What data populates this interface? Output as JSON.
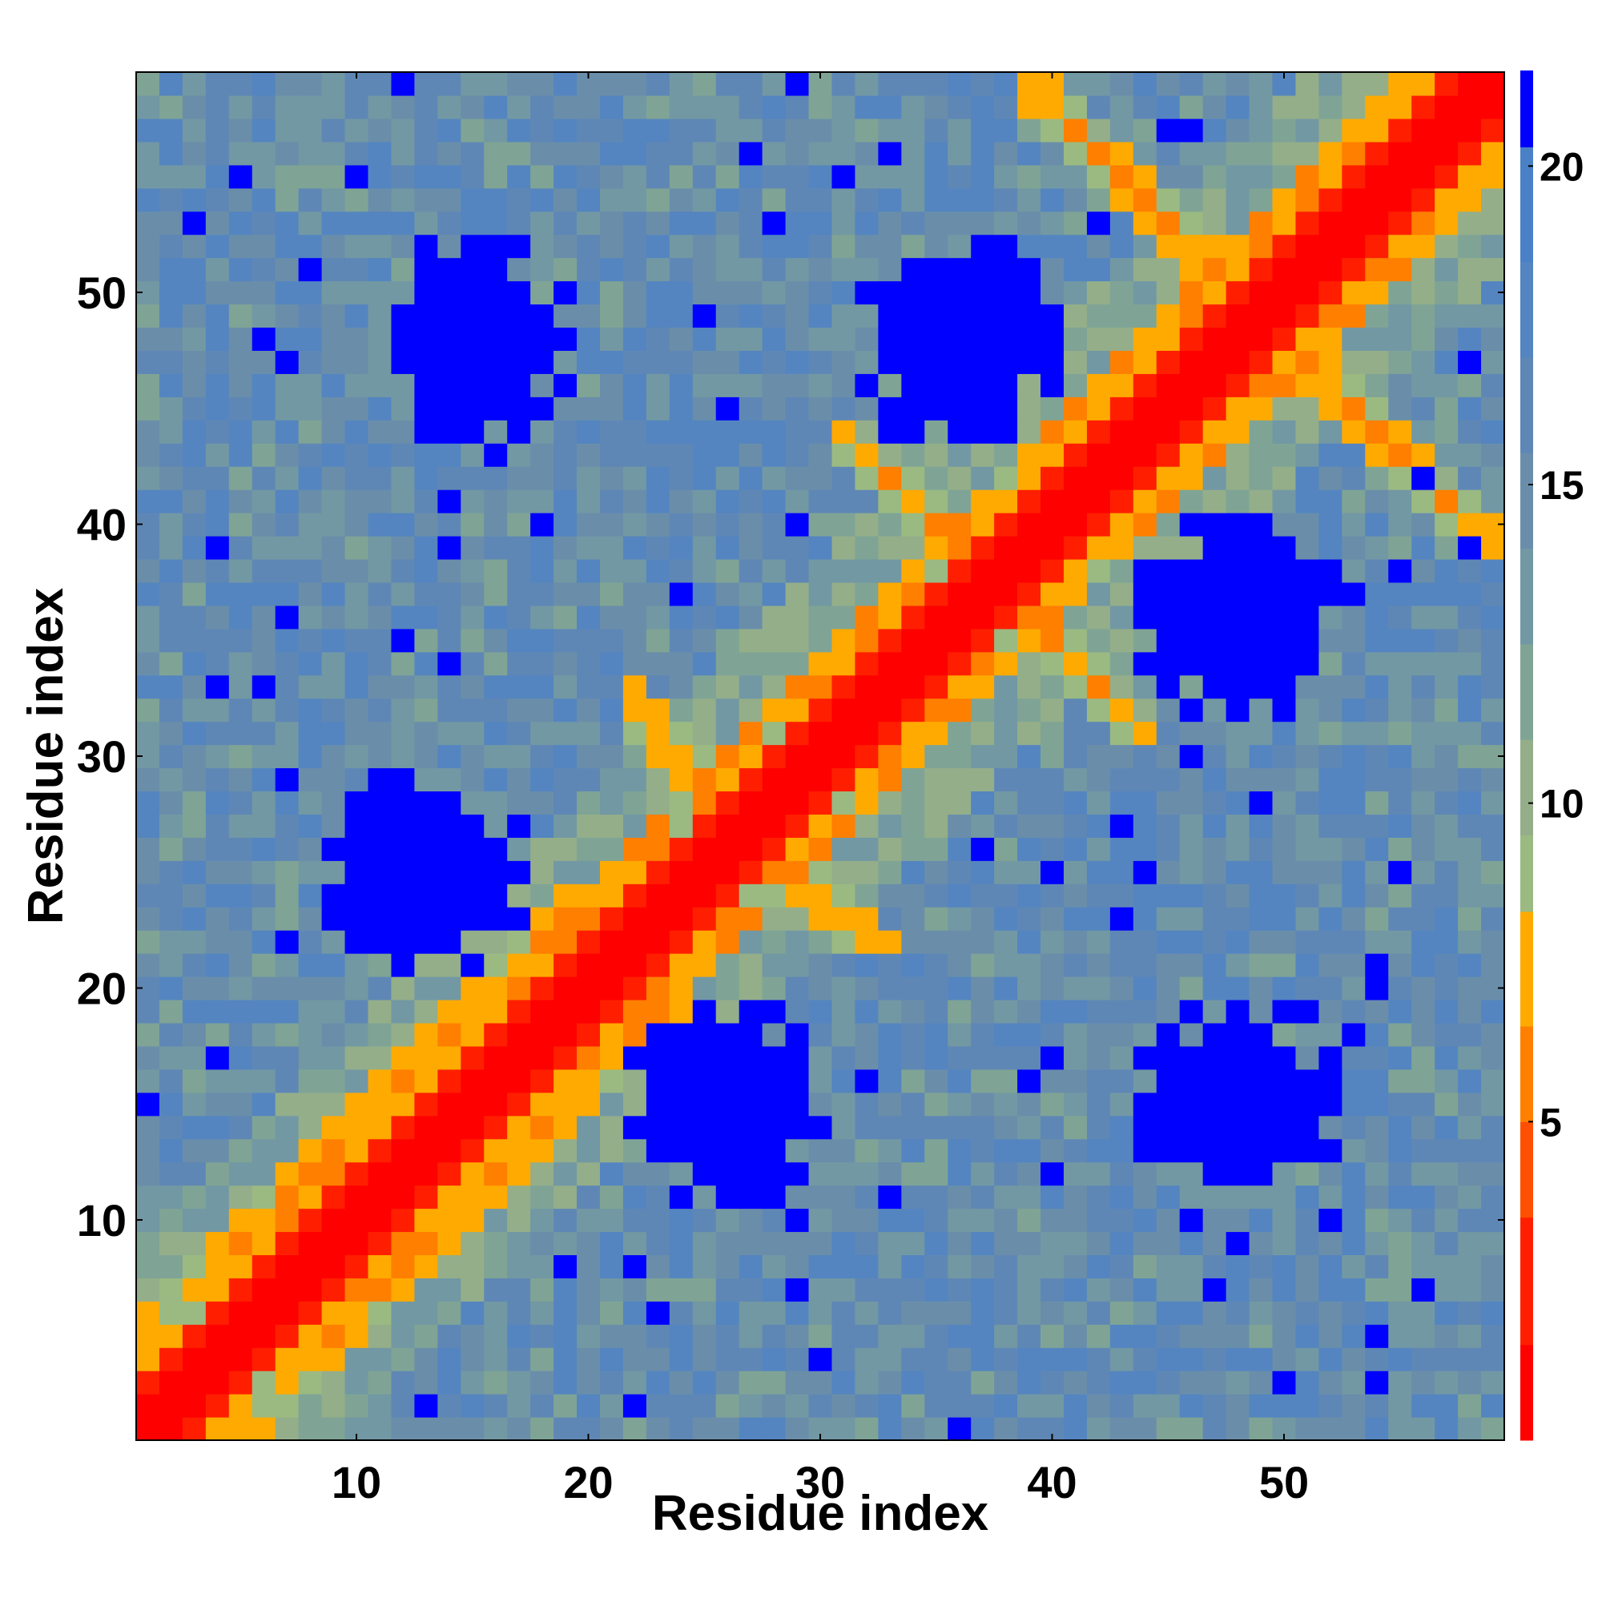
{
  "chart_data": {
    "type": "heatmap",
    "title": "",
    "xlabel": "Residue index",
    "ylabel": "Residue index",
    "n_residues": 59,
    "x_ticks": [
      10,
      20,
      30,
      40,
      50
    ],
    "y_ticks": [
      10,
      20,
      30,
      40,
      50
    ],
    "colorbar": {
      "ticks": [
        5,
        10,
        15,
        20
      ],
      "range": [
        0,
        21.5
      ],
      "bands": [
        {
          "from": 0,
          "to": 1.5,
          "color": "#ff0000"
        },
        {
          "from": 1.5,
          "to": 3.5,
          "color": "#ff1f00"
        },
        {
          "from": 3.5,
          "to": 5.0,
          "color": "#ff4f00"
        },
        {
          "from": 5.0,
          "to": 6.5,
          "color": "#ff7f00"
        },
        {
          "from": 6.5,
          "to": 8.3,
          "color": "#ffaa00"
        },
        {
          "from": 8.3,
          "to": 9.5,
          "color": "#9aba82"
        },
        {
          "from": 9.5,
          "to": 11,
          "color": "#94ae8a"
        },
        {
          "from": 11,
          "to": 12.5,
          "color": "#7fa495"
        },
        {
          "from": 12.5,
          "to": 14,
          "color": "#7298a4"
        },
        {
          "from": 14,
          "to": 15.5,
          "color": "#6a8eaa"
        },
        {
          "from": 15.5,
          "to": 17,
          "color": "#5f87b5"
        },
        {
          "from": 17,
          "to": 18.5,
          "color": "#5485c0"
        },
        {
          "from": 18.5,
          "to": 20.3,
          "color": "#4a80c6"
        },
        {
          "from": 20.3,
          "to": 21.5,
          "color": "#0000ff"
        }
      ]
    },
    "value_scale": "distance between residues (colorbar units)",
    "diagonal_value": 0,
    "contact_clusters": [
      {
        "residues_i": [
          1,
          59
        ],
        "residues_j": [
          1,
          59
        ],
        "pattern": "main diagonal",
        "max_value": 3
      },
      {
        "residues_i": [
          8,
          19
        ],
        "residues_j": [
          10,
          19
        ],
        "pattern": "near-diagonal band",
        "max_value": 7
      },
      {
        "residues_i": [
          19,
          30
        ],
        "residues_j": [
          22,
          34
        ],
        "pattern": "anti-diagonal band",
        "max_value": 8
      },
      {
        "residues_i": [
          30,
          41
        ],
        "residues_j": [
          34,
          44
        ],
        "pattern": "anti-diagonal band",
        "max_value": 8
      },
      {
        "residues_i": [
          42,
          59
        ],
        "residues_j": [
          39,
          58
        ],
        "pattern": "anti-diagonal band",
        "max_value": 8
      }
    ],
    "far_clusters": [
      {
        "center": [
          15,
          26
        ],
        "value": 21
      },
      {
        "center": [
          25,
          13
        ],
        "value": 21
      },
      {
        "center": [
          15,
          48
        ],
        "value": 21
      },
      {
        "center": [
          48,
          15
        ],
        "value": 21
      },
      {
        "center": [
          36,
          48
        ],
        "value": 21
      },
      {
        "center": [
          48,
          36
        ],
        "value": 21
      }
    ]
  }
}
